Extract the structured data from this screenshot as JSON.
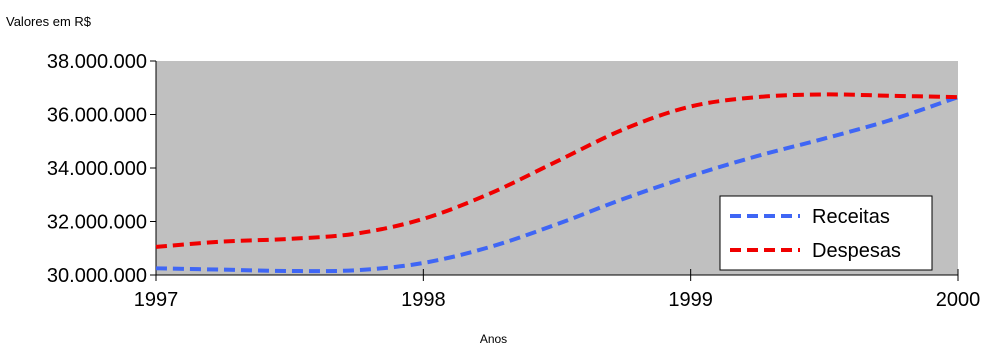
{
  "chart_data": {
    "type": "line",
    "ylabel": "Valores em R$",
    "xlabel": "Anos",
    "x": [
      1997,
      1997.25,
      1997.5,
      1997.75,
      1998,
      1998.25,
      1998.5,
      1998.75,
      1999,
      1999.25,
      1999.5,
      1999.75,
      2000
    ],
    "xticks": [
      "1997",
      "1998",
      "1999",
      "2000"
    ],
    "yticks": [
      "30.000.000",
      "32.000.000",
      "34.000.000",
      "36.000.000",
      "38.000.000"
    ],
    "ylim": [
      30000000,
      38000000
    ],
    "xlim": [
      1997,
      2000
    ],
    "grid": false,
    "legend_position": "bottom-right",
    "series": [
      {
        "name": "Receitas",
        "color": "#3f66f5",
        "values": [
          30250000,
          30200000,
          30150000,
          30180000,
          30450000,
          31050000,
          31900000,
          32850000,
          33700000,
          34450000,
          35100000,
          35800000,
          36650000
        ]
      },
      {
        "name": "Despesas",
        "color": "#f00000",
        "values": [
          31050000,
          31250000,
          31350000,
          31550000,
          32100000,
          33050000,
          34250000,
          35450000,
          36300000,
          36650000,
          36750000,
          36700000,
          36650000
        ]
      }
    ],
    "plot_background": "#c0c0c0"
  }
}
